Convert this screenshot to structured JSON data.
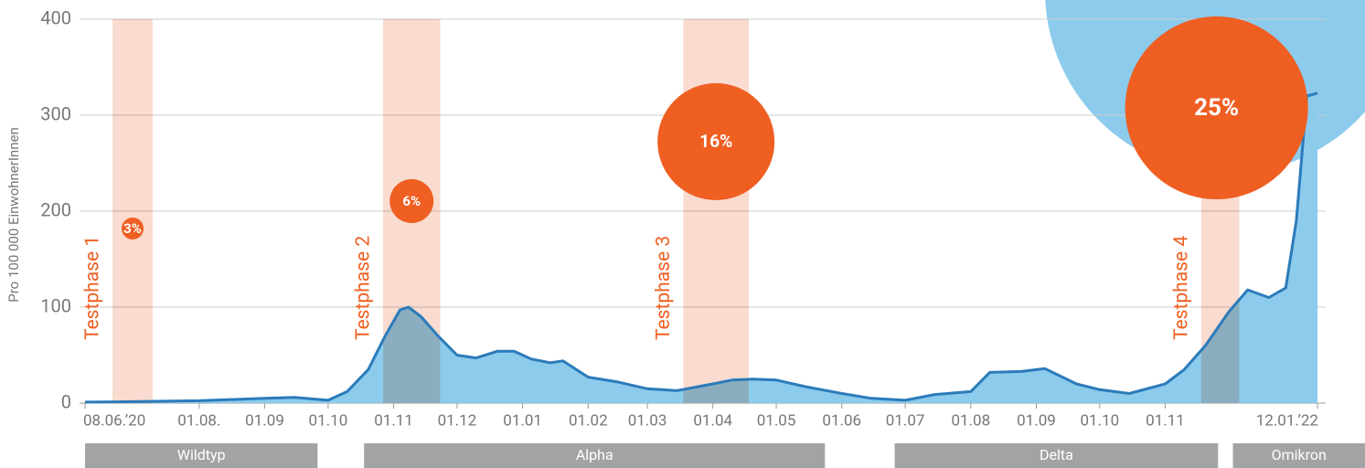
{
  "chart_data": {
    "type": "area",
    "y_label": "Pro 100 000 EinwohnerInnen",
    "x": [
      "2020-06-08",
      "2020-07-01",
      "2020-08-01",
      "2020-09-01",
      "2020-09-15",
      "2020-10-01",
      "2020-10-10",
      "2020-10-20",
      "2020-10-28",
      "2020-11-04",
      "2020-11-08",
      "2020-11-14",
      "2020-11-22",
      "2020-12-01",
      "2020-12-10",
      "2020-12-20",
      "2020-12-28",
      "2021-01-05",
      "2021-01-14",
      "2021-01-20",
      "2021-02-01",
      "2021-02-15",
      "2021-03-01",
      "2021-03-15",
      "2021-04-01",
      "2021-04-10",
      "2021-04-20",
      "2021-05-01",
      "2021-05-15",
      "2021-06-01",
      "2021-06-15",
      "2021-07-01",
      "2021-07-15",
      "2021-08-01",
      "2021-08-10",
      "2021-08-25",
      "2021-09-05",
      "2021-09-20",
      "2021-10-01",
      "2021-10-15",
      "2021-11-01",
      "2021-11-10",
      "2021-11-20",
      "2021-12-01",
      "2021-12-10",
      "2021-12-20",
      "2021-12-28",
      "2022-01-02",
      "2022-01-07",
      "2022-01-12"
    ],
    "series": [
      {
        "color": "#2b7bba",
        "fill": "#8dcbec",
        "values": [
          1,
          1.5,
          2.5,
          5,
          6,
          3,
          12,
          35,
          70,
          97,
          100,
          90,
          70,
          50,
          47,
          54,
          54,
          46,
          42,
          44,
          27,
          22,
          15,
          13,
          20,
          24,
          25,
          24,
          17,
          10,
          5,
          3,
          9,
          12,
          32,
          33,
          36,
          20,
          14,
          10,
          20,
          35,
          60,
          95,
          118,
          110,
          120,
          190,
          320,
          323
        ]
      }
    ],
    "xlim": [
      "2020-06-08",
      "2022-01-12"
    ],
    "ylim": [
      0,
      400
    ],
    "yticks": [
      0,
      100,
      200,
      300,
      400
    ],
    "grid": true,
    "xticks": [
      {
        "value": "2020-06-08",
        "label": "08.06.’20"
      },
      {
        "value": "2020-08-01",
        "label": "01.08."
      },
      {
        "value": "2020-09-01",
        "label": "01.09"
      },
      {
        "value": "2020-10-01",
        "label": "01.10"
      },
      {
        "value": "2020-11-01",
        "label": "01.11"
      },
      {
        "value": "2020-12-01",
        "label": "01.12"
      },
      {
        "value": "2021-01-01",
        "label": "01.01"
      },
      {
        "value": "2021-02-01",
        "label": "01.02"
      },
      {
        "value": "2021-03-01",
        "label": "01.03"
      },
      {
        "value": "2021-04-01",
        "label": "01.04"
      },
      {
        "value": "2021-05-01",
        "label": "01.05"
      },
      {
        "value": "2021-06-01",
        "label": "01.06"
      },
      {
        "value": "2021-07-01",
        "label": "01.07"
      },
      {
        "value": "2021-08-01",
        "label": "01.08"
      },
      {
        "value": "2021-09-01",
        "label": "01.09"
      },
      {
        "value": "2021-10-01",
        "label": "01.10"
      },
      {
        "value": "2021-11-01",
        "label": "01.11"
      },
      {
        "value": "2022-01-12",
        "label": "12.01.’22"
      }
    ],
    "test_phases": [
      {
        "label": "Testphase 1",
        "from": "2020-06-21",
        "to": "2020-07-10",
        "value": 3,
        "value_label": "3%"
      },
      {
        "label": "Testphase 2",
        "from": "2020-10-27",
        "to": "2020-11-23",
        "value": 6,
        "value_label": "6%"
      },
      {
        "label": "Testphase 3",
        "from": "2021-03-18",
        "to": "2021-04-18",
        "value": 16,
        "value_label": "16%"
      },
      {
        "label": "Testphase 4",
        "from": "2021-11-18",
        "to": "2021-12-06",
        "value": 25,
        "value_label": "25%"
      }
    ],
    "variants": [
      {
        "label": "Wildtyp",
        "from": "2020-06-08",
        "to": "2020-09-26"
      },
      {
        "label": "Alpha",
        "from": "2020-10-18",
        "to": "2021-05-24"
      },
      {
        "label": "Delta",
        "from": "2021-06-26",
        "to": "2021-11-26"
      },
      {
        "label": "Omikron",
        "from": "2021-12-03"
      }
    ]
  }
}
